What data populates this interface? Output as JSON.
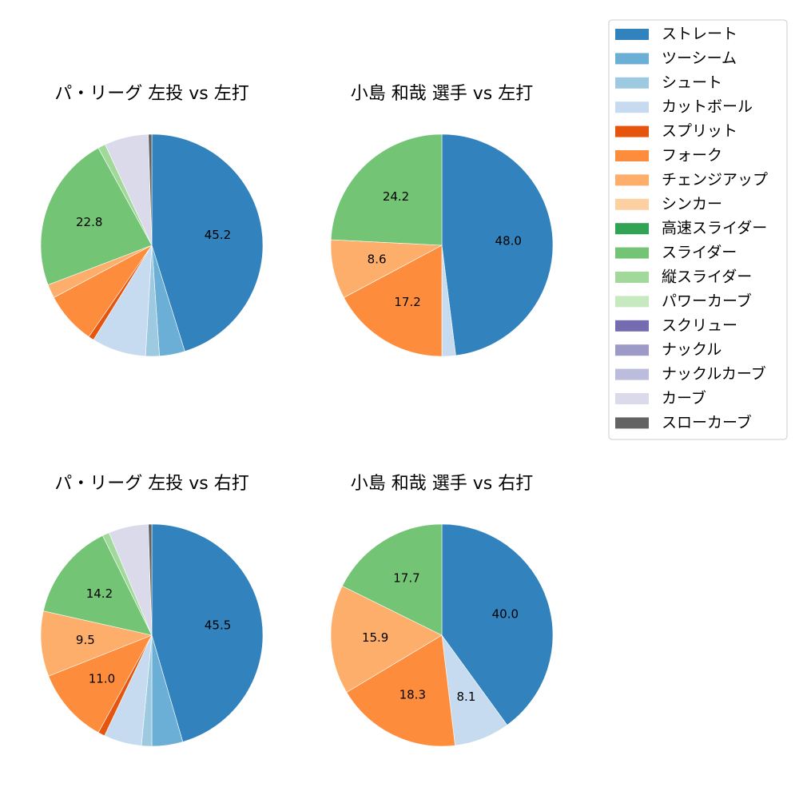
{
  "legend": {
    "categories": [
      "ストレート",
      "ツーシーム",
      "シュート",
      "カットボール",
      "スプリット",
      "フォーク",
      "チェンジアップ",
      "シンカー",
      "高速スライダー",
      "スライダー",
      "縦スライダー",
      "パワーカーブ",
      "スクリュー",
      "ナックル",
      "ナックルカーブ",
      "カーブ",
      "スローカーブ"
    ],
    "colors": [
      "#3182bd",
      "#6baed6",
      "#9ecae1",
      "#c6dbef",
      "#e6550d",
      "#fd8d3c",
      "#fdae6b",
      "#fdd0a2",
      "#31a354",
      "#74c476",
      "#a1d99b",
      "#c7e9c0",
      "#756bb1",
      "#9e9ac8",
      "#bcbddc",
      "#dadaeb",
      "#636363"
    ]
  },
  "chart_data": [
    {
      "type": "pie",
      "title": "パ・リーグ 左投 vs 左打",
      "values": [
        45.2,
        3.7,
        2.0,
        7.9,
        0.8,
        7.6,
        2.0,
        0,
        0,
        22.8,
        1.1,
        0,
        0,
        0,
        0,
        6.4,
        0.5
      ],
      "value_labels": [
        "45.2",
        null,
        null,
        null,
        null,
        null,
        null,
        null,
        null,
        "22.8",
        null,
        null,
        null,
        null,
        null,
        null,
        null
      ]
    },
    {
      "type": "pie",
      "title": "小島 和哉 選手 vs 左打",
      "values": [
        48.0,
        0,
        0,
        2.0,
        0,
        17.2,
        8.6,
        0,
        0,
        24.2,
        0,
        0,
        0,
        0,
        0,
        0,
        0
      ],
      "value_labels": [
        "48.0",
        null,
        null,
        null,
        null,
        "17.2",
        "8.6",
        null,
        null,
        "24.2",
        null,
        null,
        null,
        null,
        null,
        null,
        null
      ]
    },
    {
      "type": "pie",
      "title": "パ・リーグ 左投 vs 右打",
      "values": [
        45.5,
        4.5,
        1.5,
        5.5,
        1.0,
        11.0,
        9.5,
        0,
        0,
        14.2,
        1.0,
        0,
        0,
        0,
        0,
        5.8,
        0.5
      ],
      "value_labels": [
        "45.5",
        null,
        null,
        null,
        null,
        "11.0",
        "9.5",
        null,
        null,
        "14.2",
        null,
        null,
        null,
        null,
        null,
        null,
        null
      ]
    },
    {
      "type": "pie",
      "title": "小島 和哉 選手 vs 右打",
      "values": [
        40.0,
        0,
        0,
        8.1,
        0,
        18.3,
        15.9,
        0,
        0,
        17.7,
        0,
        0,
        0,
        0,
        0,
        0,
        0
      ],
      "value_labels": [
        "40.0",
        null,
        null,
        "8.1",
        null,
        "18.3",
        "15.9",
        null,
        null,
        "17.7",
        null,
        null,
        null,
        null,
        null,
        null,
        null
      ]
    }
  ]
}
